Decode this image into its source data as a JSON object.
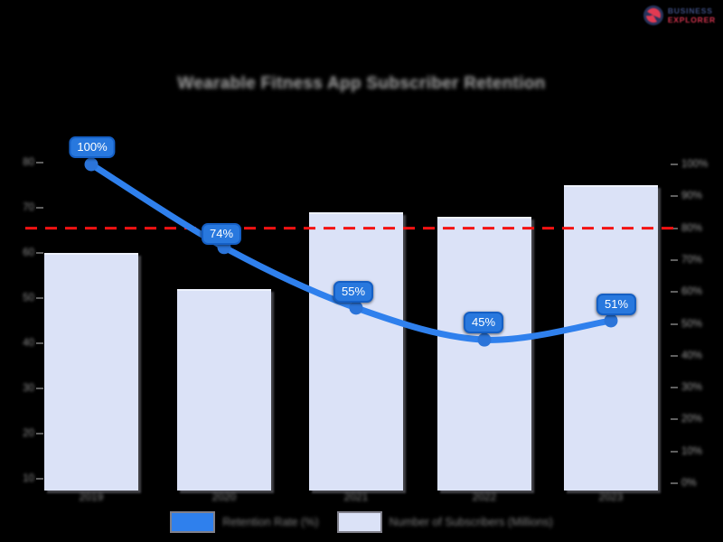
{
  "brand": {
    "line1": "BUSINESS",
    "line2": "EXPLORER"
  },
  "title": "Wearable Fitness App Subscriber Retention",
  "colors": {
    "background": "#000000",
    "bar_fill": "#dbe2f7",
    "line_blue": "#2f80ed",
    "marker_blue": "#2b74d9",
    "callout_fill": "#2878de",
    "callout_border": "#155fc4",
    "threshold_red": "#f31212",
    "axis_text_gray": "#909090"
  },
  "chart_data": {
    "type": "bar",
    "title": "Wearable Fitness App Subscriber Retention",
    "categories": [
      "2019",
      "2020",
      "2021",
      "2022",
      "2023"
    ],
    "series": [
      {
        "name": "Retention Rate (%)",
        "type": "line",
        "axis": "right",
        "values": [
          100,
          74,
          55,
          45,
          51
        ],
        "point_labels": [
          "100%",
          "74%",
          "55%",
          "45%",
          "51%"
        ],
        "color": "#2f80ed"
      },
      {
        "name": "Number of Subscribers (Millions)",
        "type": "bar",
        "axis": "left",
        "values": [
          60,
          52,
          69,
          68,
          75
        ],
        "color": "#dbe2f7"
      }
    ],
    "threshold_line": {
      "axis": "right",
      "value": 80,
      "color": "#f31212",
      "style": "dashed"
    },
    "left_axis": {
      "tick_labels": [
        "80",
        "70",
        "60",
        "50",
        "40",
        "30",
        "20",
        "10"
      ],
      "range": [
        8,
        82
      ]
    },
    "right_axis": {
      "tick_labels": [
        "100%",
        "90%",
        "80%",
        "70%",
        "60%",
        "50%",
        "40%",
        "30%",
        "20%",
        "10%",
        "0%"
      ],
      "range": [
        0,
        100
      ]
    },
    "legend_position": "bottom",
    "grid": "off"
  },
  "legend": [
    {
      "label": "Retention Rate (%)",
      "swatch_color": "#2f80ed"
    },
    {
      "label": "Number of Subscribers (Millions)",
      "swatch_color": "#dbe2f7"
    }
  ]
}
